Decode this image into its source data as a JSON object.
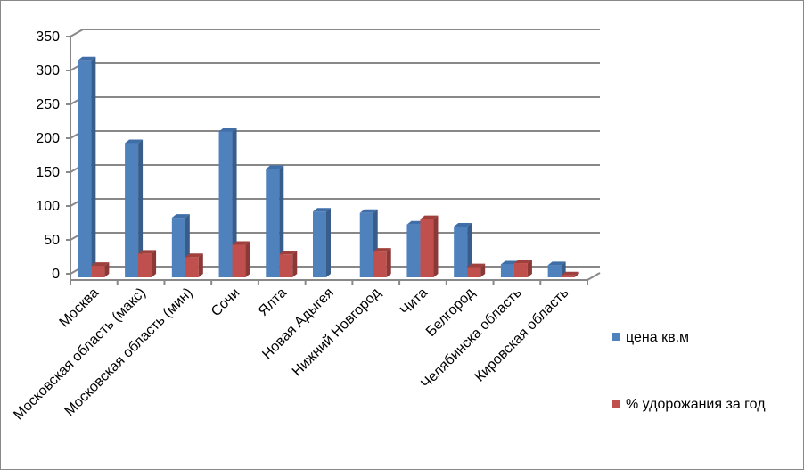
{
  "chart_data": {
    "type": "bar",
    "style": "3d-clustered-column",
    "categories": [
      "Москва",
      "Московская область (макс)",
      "Московская область (мин)",
      "Сочи",
      "Ялта",
      "Новая Адыгея",
      "Нижний Новгород",
      "Чита",
      "Белгород",
      "Челябинска область",
      "Кировская область"
    ],
    "series": [
      {
        "name": "цена кв.м",
        "color": "#4F81BD",
        "values": [
          320,
          198,
          88,
          215,
          160,
          97,
          95,
          78,
          75,
          19,
          18
        ]
      },
      {
        "name": "% удорожания за год",
        "color": "#C0504D",
        "values": [
          17,
          35,
          30,
          48,
          34,
          0,
          38,
          86,
          15,
          21,
          3
        ]
      }
    ],
    "yticks": [
      "0",
      "50",
      "100",
      "150",
      "200",
      "250",
      "300",
      "350"
    ],
    "ylim": [
      0,
      350
    ],
    "grid": true,
    "legend": "right"
  }
}
